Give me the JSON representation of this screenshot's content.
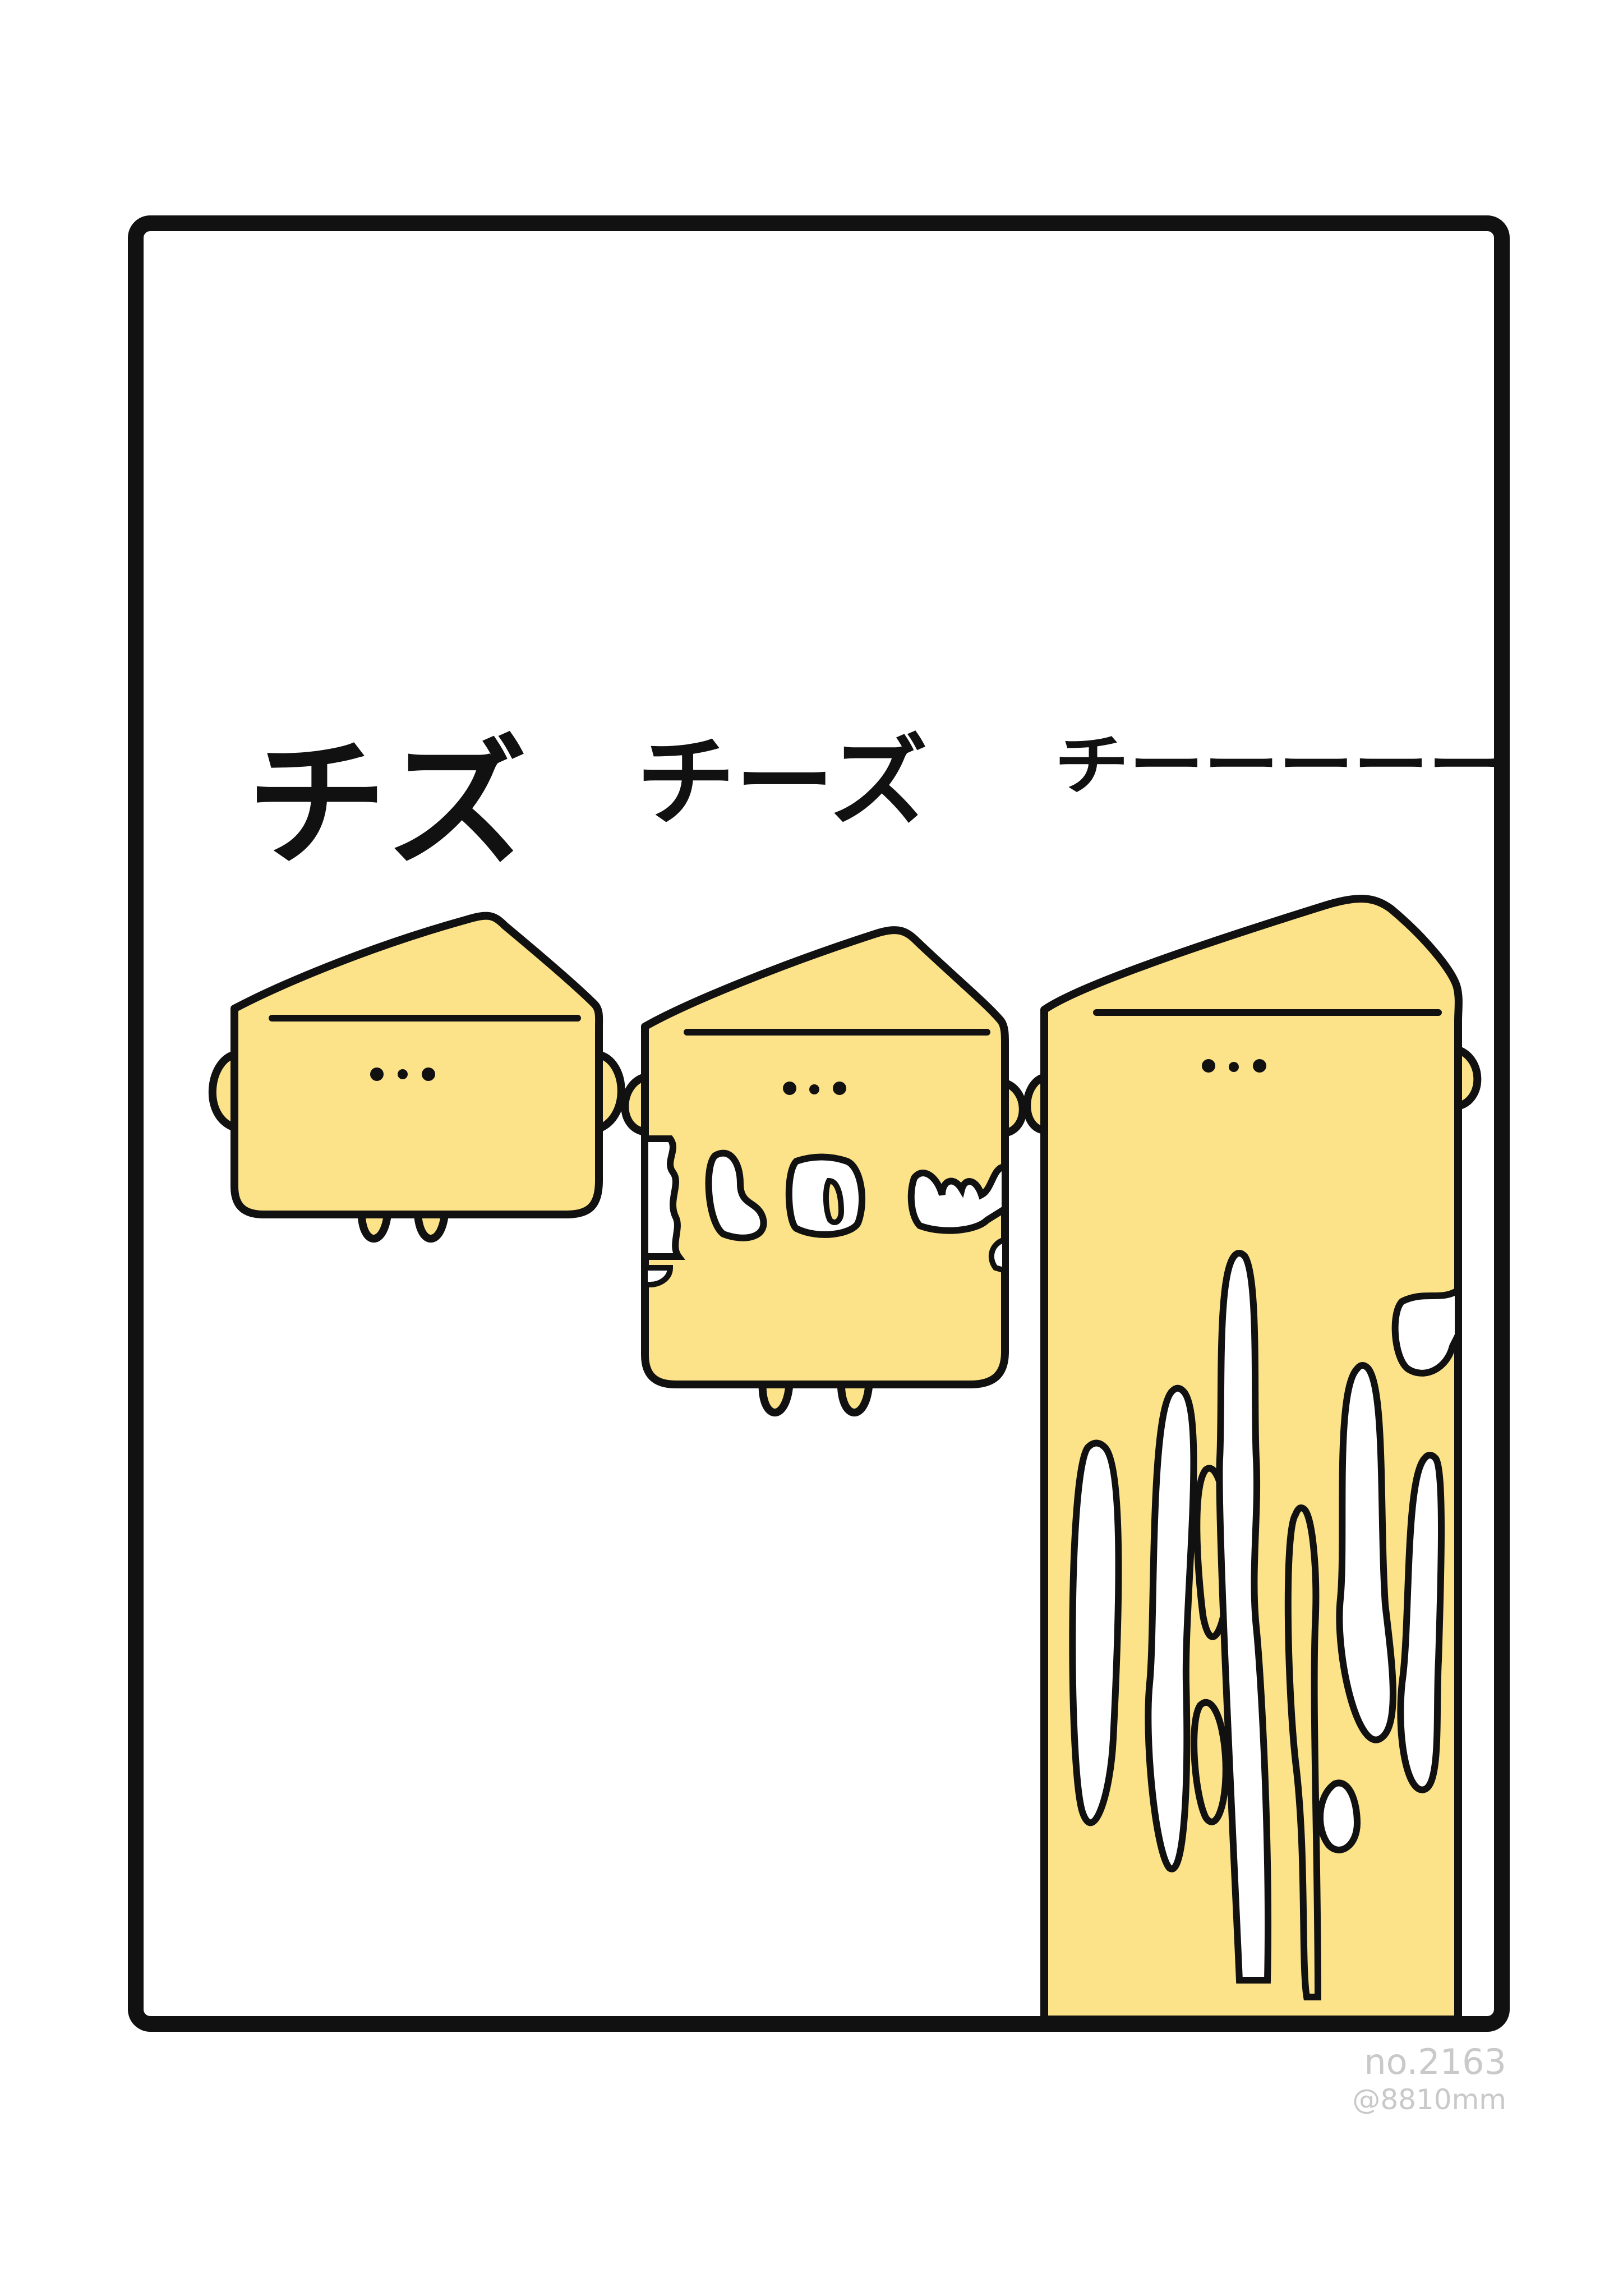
{
  "captions": {
    "first": "チズ",
    "second": "チーズ",
    "third": "チーーーーー"
  },
  "credit": {
    "issue": "no.2163",
    "handle": "@8810mm"
  },
  "colors": {
    "cheese": "#FCE38A",
    "outline": "#111111",
    "background": "#FFFFFF",
    "credit": "#C9C9C9"
  },
  "characters": [
    {
      "name": "cheese-small",
      "state": "intact"
    },
    {
      "name": "cheese-medium",
      "state": "melting"
    },
    {
      "name": "cheese-tall",
      "state": "stretched"
    }
  ]
}
